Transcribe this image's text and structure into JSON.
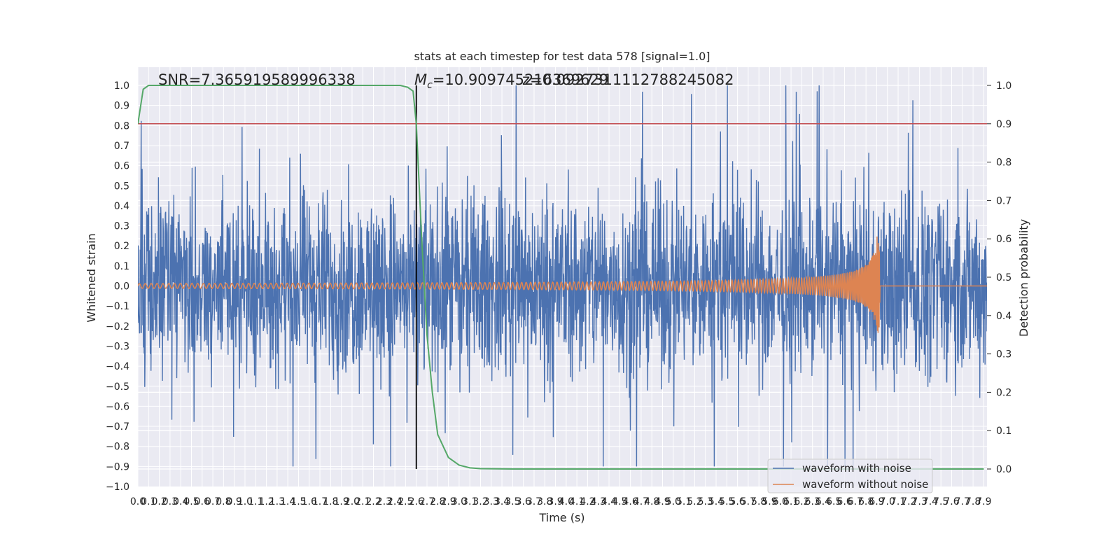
{
  "chart_data": {
    "type": "line",
    "title": "stats at each timestep for test data 578 [signal=1.0]",
    "xlabel": "Time (s)",
    "ylabel_left": "Whitened strain",
    "ylabel_right": "Detection probability",
    "xlim": [
      0,
      7.93
    ],
    "ylim_left": [
      -1.0,
      1.0
    ],
    "ylim_right": [
      0.0,
      1.0
    ],
    "x_tick_labels": [
      "0.0",
      "0.1",
      "0.2",
      "0.3",
      "0.4",
      "0.5",
      "0.6",
      "0.7",
      "0.8",
      "0.9",
      "1.0",
      "1.1",
      "1.2",
      "1.3",
      "1.4",
      "1.5",
      "1.6",
      "1.7",
      "1.8",
      "1.9",
      "2.0",
      "2.1",
      "2.2",
      "2.3",
      "2.4",
      "2.5",
      "2.6",
      "2.7",
      "2.8",
      "2.9",
      "3.0",
      "3.1",
      "3.2",
      "3.3",
      "3.4",
      "3.5",
      "3.6",
      "3.7",
      "3.8",
      "3.9",
      "4.0",
      "4.1",
      "4.2",
      "4.3",
      "4.4",
      "4.5",
      "4.6",
      "4.7",
      "4.8",
      "4.9",
      "5.0",
      "5.1",
      "5.2",
      "5.3",
      "5.4",
      "5.5",
      "5.6",
      "5.7",
      "5.8",
      "5.9",
      "6.0",
      "6.1",
      "6.2",
      "6.3",
      "6.4",
      "6.5",
      "6.6",
      "6.7",
      "6.8",
      "6.9",
      "7.0",
      "7.1",
      "7.2",
      "7.3",
      "7.4",
      "7.5",
      "7.6",
      "7.7",
      "7.8",
      "7.9"
    ],
    "y_left_tick_labels": [
      "1.0",
      "0.9",
      "0.8",
      "0.7",
      "0.6",
      "0.5",
      "0.4",
      "0.3",
      "0.2",
      "0.1",
      "0.0",
      "−0.1",
      "−0.2",
      "−0.3",
      "−0.4",
      "−0.5",
      "−0.6",
      "−0.7",
      "−0.8",
      "−0.9",
      "−1.0"
    ],
    "y_right_tick_labels": [
      "1.0",
      "0.9",
      "0.8",
      "0.7",
      "0.6",
      "0.5",
      "0.4",
      "0.3",
      "0.2",
      "0.1",
      "0.0"
    ],
    "annotations": {
      "snr": "SNR=7.365919589996338",
      "mc_symbol": "M",
      "mc_sub": "c",
      "mc_value": "=10.909745216369629",
      "z_text": "z=0.0927311112788245082"
    },
    "event_time": 2.6,
    "threshold": 0.9,
    "legend": {
      "position": "lower-right",
      "items": [
        "waveform with noise",
        "waveform without noise"
      ]
    },
    "grid": true,
    "series": [
      {
        "name": "waveform with noise",
        "axis": "left",
        "color": "#4c72b0",
        "description_amplitude_range": [
          -0.9,
          1.0
        ]
      },
      {
        "name": "waveform without noise",
        "axis": "left",
        "color": "#dd8452",
        "merger_time": 6.93,
        "peak_amplitude": 0.25
      },
      {
        "axis": "right",
        "color": "#55a868",
        "x": [
          0.0,
          0.05,
          0.1,
          0.2,
          0.5,
          1.0,
          1.5,
          2.0,
          2.3,
          2.45,
          2.52,
          2.57,
          2.6,
          2.65,
          2.7,
          2.75,
          2.8,
          2.9,
          3.0,
          3.1,
          3.2,
          3.5,
          4.0,
          5.0,
          6.0,
          7.0,
          7.9
        ],
        "values": [
          0.9,
          0.99,
          1.0,
          1.0,
          1.0,
          1.0,
          1.0,
          1.0,
          1.0,
          1.0,
          0.995,
          0.985,
          0.9,
          0.6,
          0.35,
          0.2,
          0.09,
          0.03,
          0.01,
          0.003,
          0.001,
          0.0,
          0.0,
          0.0,
          0.0,
          0.0,
          0.0
        ]
      }
    ],
    "colors": {
      "background": "#eaeaf2",
      "grid": "#ffffff",
      "threshold": "#c44e52",
      "event_line": "#000000"
    }
  }
}
